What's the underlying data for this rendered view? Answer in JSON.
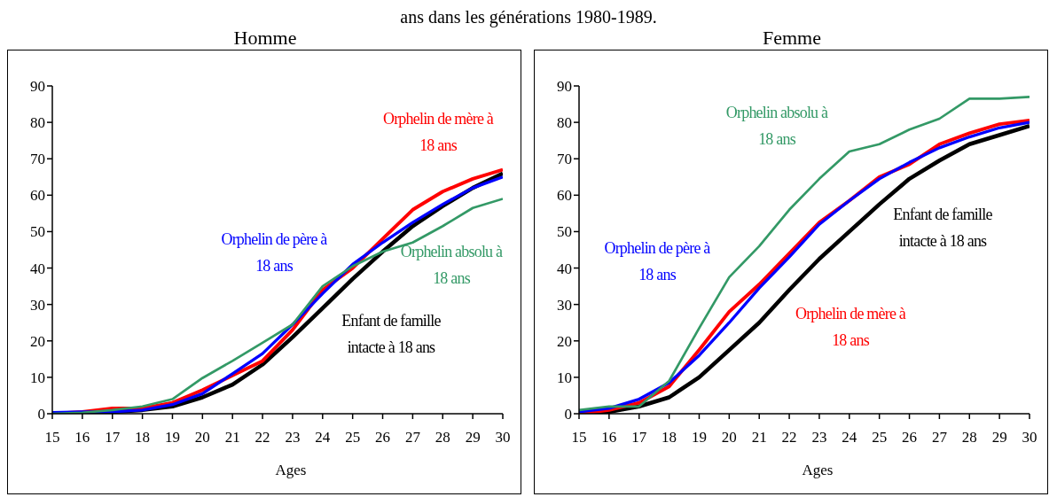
{
  "chart_data": [
    {
      "type": "line",
      "title": "Homme",
      "xlabel": "Ages",
      "annotations": [
        "ans dans les générations 1980-1989."
      ],
      "x": [
        15,
        16,
        17,
        18,
        19,
        20,
        21,
        22,
        23,
        24,
        25,
        26,
        27,
        28,
        29,
        30
      ],
      "xlim": [
        15,
        30
      ],
      "xticks": [
        15,
        16,
        17,
        18,
        19,
        20,
        21,
        22,
        23,
        24,
        25,
        26,
        27,
        28,
        29,
        30
      ],
      "ylim": [
        0,
        90
      ],
      "yticks": [
        0,
        10,
        20,
        30,
        40,
        50,
        60,
        70,
        80,
        90
      ],
      "grid": false,
      "legend": false,
      "marker": "none",
      "line_style": "solid",
      "series": [
        {
          "name": "Enfant de famille intacte à 18 ans",
          "color": "#000000",
          "values": [
            0,
            0,
            0.5,
            1,
            2,
            4.5,
            8,
            13.5,
            21,
            29,
            37,
            44.5,
            51.5,
            57,
            62,
            66
          ]
        },
        {
          "name": "Orphelin de mère à 18 ans",
          "color": "#ff0000",
          "values": [
            0,
            0.5,
            1.5,
            1.5,
            3,
            6.5,
            10.5,
            14.5,
            23,
            34,
            40,
            48,
            56,
            61,
            64.5,
            67
          ]
        },
        {
          "name": "Orphelin de père à 18 ans",
          "color": "#0000ff",
          "values": [
            0.3,
            0.5,
            0.5,
            1,
            2.5,
            5.5,
            11,
            16.5,
            24.5,
            33,
            41,
            47,
            52.5,
            57.5,
            62,
            65
          ]
        },
        {
          "name": "Orphelin absolu à 18 ans",
          "color": "#339966",
          "values": [
            0,
            0.3,
            1,
            2,
            4,
            9.8,
            14.5,
            19.5,
            24.5,
            35,
            40.5,
            44.5,
            47,
            51.5,
            56.5,
            59
          ]
        }
      ]
    },
    {
      "type": "line",
      "title": "Femme",
      "xlabel": "Ages",
      "x": [
        15,
        16,
        17,
        18,
        19,
        20,
        21,
        22,
        23,
        24,
        25,
        26,
        27,
        28,
        29,
        30
      ],
      "xlim": [
        15,
        30
      ],
      "xticks": [
        15,
        16,
        17,
        18,
        19,
        20,
        21,
        22,
        23,
        24,
        25,
        26,
        27,
        28,
        29,
        30
      ],
      "ylim": [
        0,
        90
      ],
      "yticks": [
        0,
        10,
        20,
        30,
        40,
        50,
        60,
        70,
        80,
        90
      ],
      "grid": false,
      "legend": false,
      "marker": "none",
      "line_style": "solid",
      "series": [
        {
          "name": "Enfant de famille intacte à 18 ans",
          "color": "#000000",
          "values": [
            0,
            0.5,
            2,
            4.5,
            10,
            17.5,
            25,
            34,
            42.5,
            50,
            57.5,
            64.5,
            69.5,
            74,
            76.5,
            79
          ]
        },
        {
          "name": "Orphelin de mère à 18 ans",
          "color": "#ff0000",
          "values": [
            0,
            1,
            3,
            7.5,
            17.5,
            28,
            35.5,
            44,
            52.5,
            58.5,
            65,
            68.5,
            74,
            77,
            79.5,
            80.5
          ]
        },
        {
          "name": "Orphelin de père à 18 ans",
          "color": "#0000ff",
          "values": [
            0.5,
            1.5,
            4,
            8.5,
            16,
            25,
            34.5,
            43,
            52,
            58.5,
            64.5,
            69,
            73,
            76,
            78.5,
            80
          ]
        },
        {
          "name": "Orphelin absolu à 18 ans",
          "color": "#339966",
          "values": [
            1,
            2,
            2,
            9,
            23.5,
            37.5,
            46,
            56,
            64.5,
            72,
            74,
            78,
            81,
            86.5,
            86.5,
            87
          ]
        }
      ]
    }
  ]
}
